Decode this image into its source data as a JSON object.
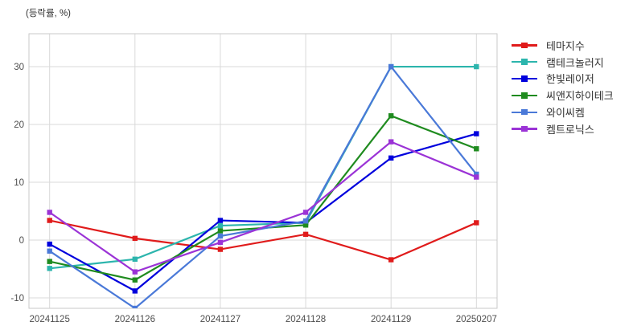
{
  "chart_data": {
    "type": "line",
    "title": "(등락률, %)",
    "x": [
      "20241125",
      "20241126",
      "20241127",
      "20241128",
      "20241129",
      "20250207"
    ],
    "series": [
      {
        "name": "테마지수",
        "color": "#e01b1b",
        "values": [
          3.4,
          0.3,
          -1.6,
          1.0,
          -3.4,
          3.0
        ]
      },
      {
        "name": "램테크놀러지",
        "color": "#2cb5ad",
        "values": [
          -4.9,
          -3.3,
          2.5,
          3.0,
          30.0,
          30.0
        ]
      },
      {
        "name": "한빛레이저",
        "color": "#0000dd",
        "values": [
          -0.7,
          -8.8,
          3.4,
          3.0,
          14.2,
          18.4
        ]
      },
      {
        "name": "씨앤지하이테크",
        "color": "#1f8b1f",
        "values": [
          -3.7,
          -6.9,
          1.6,
          2.6,
          21.5,
          15.8
        ]
      },
      {
        "name": "와이씨켐",
        "color": "#4a79d8",
        "values": [
          -1.9,
          -11.8,
          0.7,
          3.3,
          30.0,
          11.4
        ]
      },
      {
        "name": "켐트로닉스",
        "color": "#9b33d6",
        "values": [
          4.8,
          -5.5,
          -0.4,
          4.8,
          17.0,
          10.9
        ]
      }
    ],
    "y_ticks": [
      -10,
      0,
      10,
      20,
      30
    ],
    "ylim": [
      -11.8,
      35.7
    ],
    "xlabel": "",
    "ylabel": "",
    "grid": true,
    "legend_position": "right-outside",
    "axis_colors": {
      "grid": "#d9d9d9",
      "border": "#c9c9c9",
      "tick_text": "#4d4d4d"
    }
  }
}
